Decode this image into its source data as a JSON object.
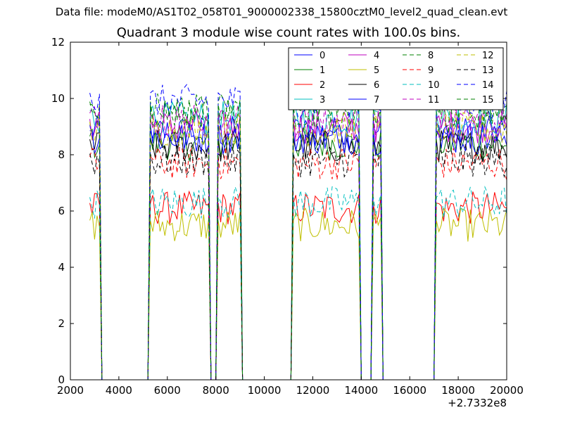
{
  "figure": {
    "suptitle": "Data file: modeM0/AS1T02_058T01_9000002338_15800cztM0_level2_quad_clean.evt"
  },
  "chart_data": {
    "type": "line",
    "title": "Quadrant 3 module wise count rates with 100.0s bins.",
    "xlabel": "",
    "ylabel": "",
    "x_offset_label": "+2.7332e8",
    "xlim": [
      2000,
      20000
    ],
    "ylim": [
      0,
      12
    ],
    "x_ticks": [
      2000,
      4000,
      6000,
      8000,
      10000,
      12000,
      14000,
      16000,
      18000,
      20000
    ],
    "y_ticks": [
      0,
      2,
      4,
      6,
      8,
      10,
      12
    ],
    "grid": false,
    "legend_position": "top-right",
    "legend_columns": 4,
    "time_range": [
      2800,
      20000
    ],
    "good_time_intervals": [
      [
        2800,
        3200
      ],
      [
        5300,
        7700
      ],
      [
        8100,
        9000
      ],
      [
        11200,
        13900
      ],
      [
        14500,
        14800
      ],
      [
        17100,
        20000
      ]
    ],
    "series": [
      {
        "name": "0",
        "color": "#0000ff",
        "dash": "solid",
        "level": 8.8
      },
      {
        "name": "1",
        "color": "#008000",
        "dash": "solid",
        "level": 8.4
      },
      {
        "name": "2",
        "color": "#ff0000",
        "dash": "solid",
        "level": 6.1
      },
      {
        "name": "3",
        "color": "#00bfbf",
        "dash": "solid",
        "level": 9.3
      },
      {
        "name": "4",
        "color": "#bf00bf",
        "dash": "solid",
        "level": 9.0
      },
      {
        "name": "5",
        "color": "#bfbf00",
        "dash": "solid",
        "level": 5.5
      },
      {
        "name": "6",
        "color": "#000000",
        "dash": "solid",
        "level": 8.3
      },
      {
        "name": "7",
        "color": "#0000ff",
        "dash": "solid",
        "level": 8.6
      },
      {
        "name": "8",
        "color": "#008000",
        "dash": "dashed",
        "level": 9.6
      },
      {
        "name": "9",
        "color": "#ff0000",
        "dash": "dashed",
        "level": 7.7
      },
      {
        "name": "10",
        "color": "#00bfbf",
        "dash": "dashed",
        "level": 6.3
      },
      {
        "name": "11",
        "color": "#bf00bf",
        "dash": "dashed",
        "level": 9.2
      },
      {
        "name": "12",
        "color": "#bfbf00",
        "dash": "dashed",
        "level": 8.9
      },
      {
        "name": "13",
        "color": "#000000",
        "dash": "dashed",
        "level": 7.8
      },
      {
        "name": "14",
        "color": "#0000ff",
        "dash": "dashed",
        "level": 9.9
      },
      {
        "name": "15",
        "color": "#008000",
        "dash": "dashed",
        "level": 9.5
      }
    ]
  }
}
